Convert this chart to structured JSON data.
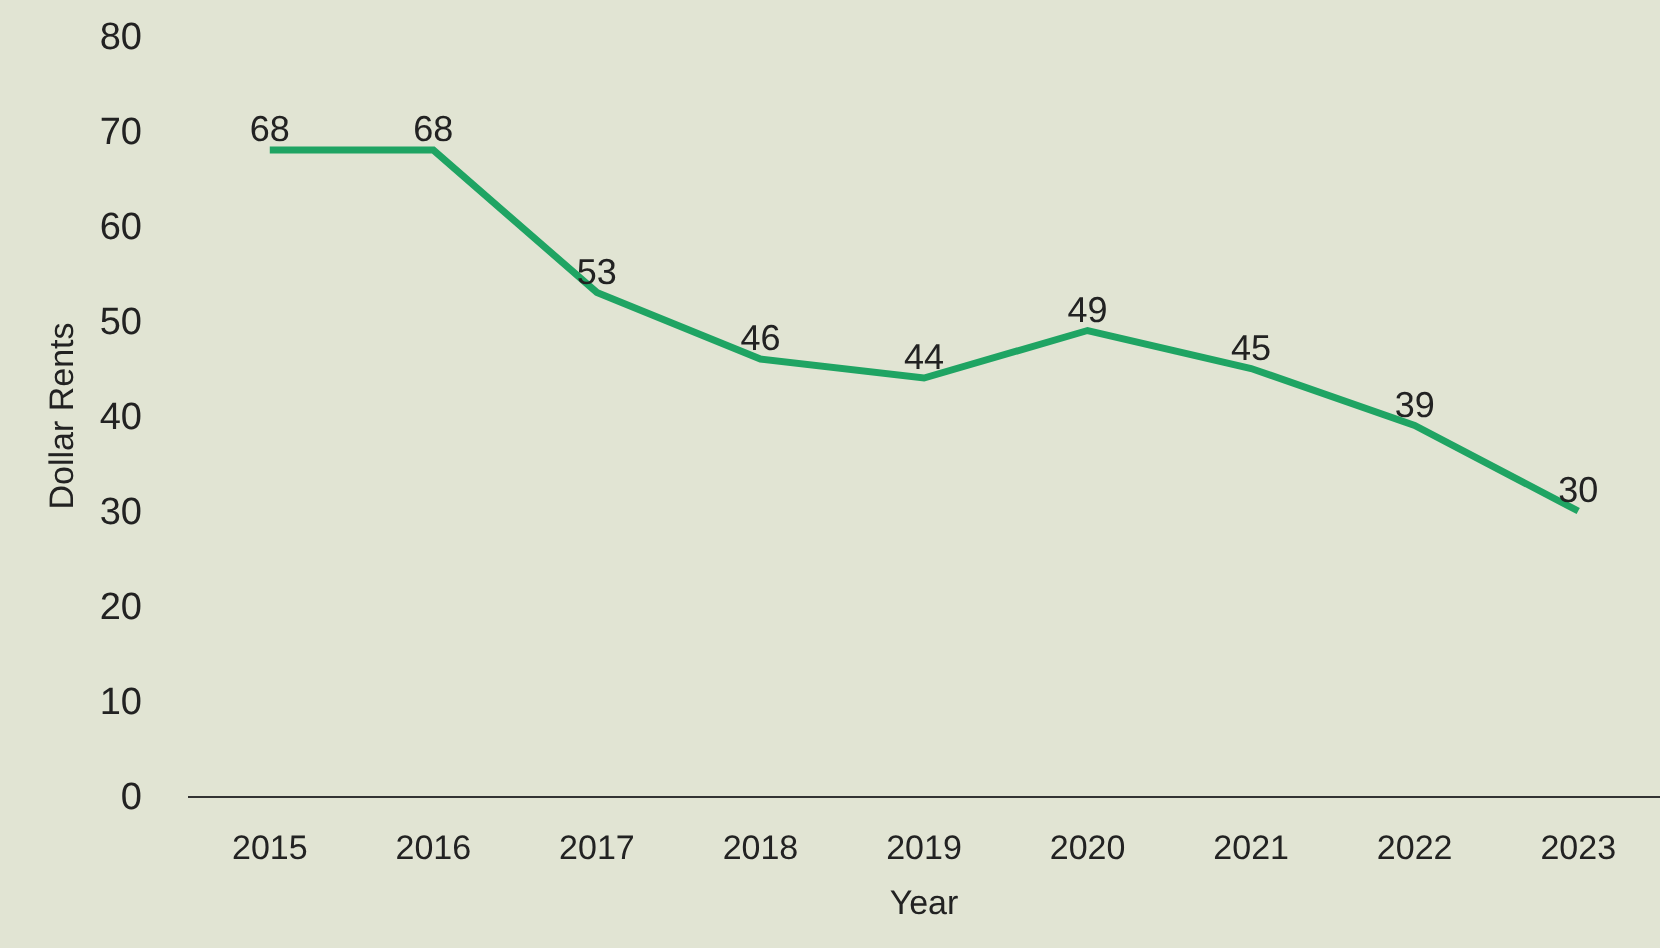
{
  "chart_data": {
    "type": "line",
    "xlabel": "Year",
    "ylabel": "Dollar Rents",
    "categories": [
      "2015",
      "2016",
      "2017",
      "2018",
      "2019",
      "2020",
      "2021",
      "2022",
      "2023"
    ],
    "series": [
      {
        "color": "#1fa463",
        "values": [
          68,
          68,
          53,
          46,
          44,
          49,
          45,
          39,
          30
        ]
      }
    ],
    "ylim": [
      0,
      80
    ],
    "yticks": [
      0,
      10,
      20,
      30,
      40,
      50,
      60,
      70,
      80
    ],
    "grid": false,
    "data_labels": true
  }
}
